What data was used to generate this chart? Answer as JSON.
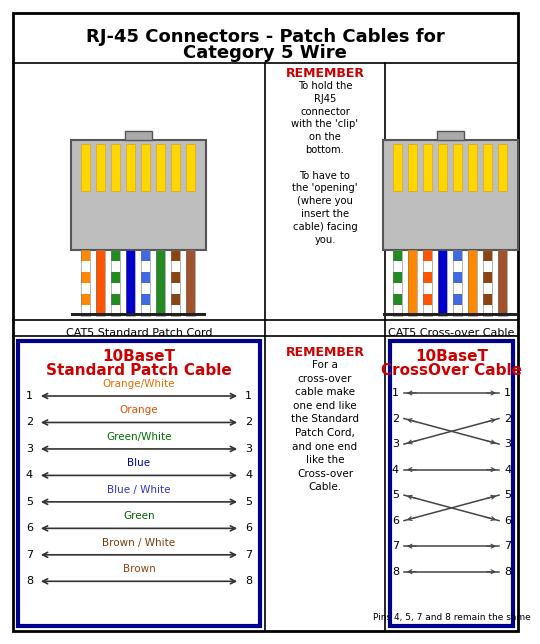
{
  "title_line1": "RJ-45 Connectors - Patch Cables for",
  "title_line2": "Category 5 Wire",
  "cat5_patch_label": "CAT5 Standard Patch Cord",
  "cat5_cross_label": "CAT5 Cross-over Cable",
  "remember_top_text": "REMEMBER",
  "remember_top_body": "To hold the\nRJ45\nconnector\nwith the 'clip'\non the\nbottom.\n\nTo have to\nthe 'opening'\n(where you\ninsert the\ncable) facing\nyou.",
  "patch_title_line1": "10BaseT",
  "patch_title_line2": "Standard Patch Cable",
  "crossover_title_line1": "10BaseT",
  "crossover_title_line2": "CrossOver Cable",
  "patch_wires": [
    {
      "label": "Orange/White",
      "color": "#E07000"
    },
    {
      "label": "Orange",
      "color": "#E05000"
    },
    {
      "label": "Green/White",
      "color": "#007000"
    },
    {
      "label": "Blue",
      "color": "#0000AA"
    },
    {
      "label": "Blue / White",
      "color": "#3333CC"
    },
    {
      "label": "Green",
      "color": "#006000"
    },
    {
      "label": "Brown / White",
      "color": "#7B3B0B"
    },
    {
      "label": "Brown",
      "color": "#8B4513"
    }
  ],
  "remember_bottom_text": "REMEMBER",
  "remember_bottom_body": "For a\ncross-over\ncable make\none end like\nthe Standard\nPatch Cord,\nand one end\nlike the\nCross-over\nCable.",
  "crossover_pins_note": "Pins 4, 5, 7 and 8 remain the same",
  "wire_colors_left_bottom": [
    "#FF8C00",
    "#FF8C00",
    "#FF5500",
    "#228B22",
    "#0000CC",
    "#4169E1",
    "#228B22",
    "#8B4513"
  ],
  "wire_colors_right_bottom": [
    "#228B22",
    "#228B22",
    "#FF8C00",
    "#0000CC",
    "#4169E1",
    "#FF5500",
    "#8B4513",
    "#A0522D"
  ],
  "bg_color": "#FFFFFF",
  "box_border_color": "#00008B",
  "title_red": "#CC0000",
  "remember_red": "#CC0000",
  "black": "#000000",
  "gray_connector": "#BEBEBE",
  "gold": "#FFD700"
}
